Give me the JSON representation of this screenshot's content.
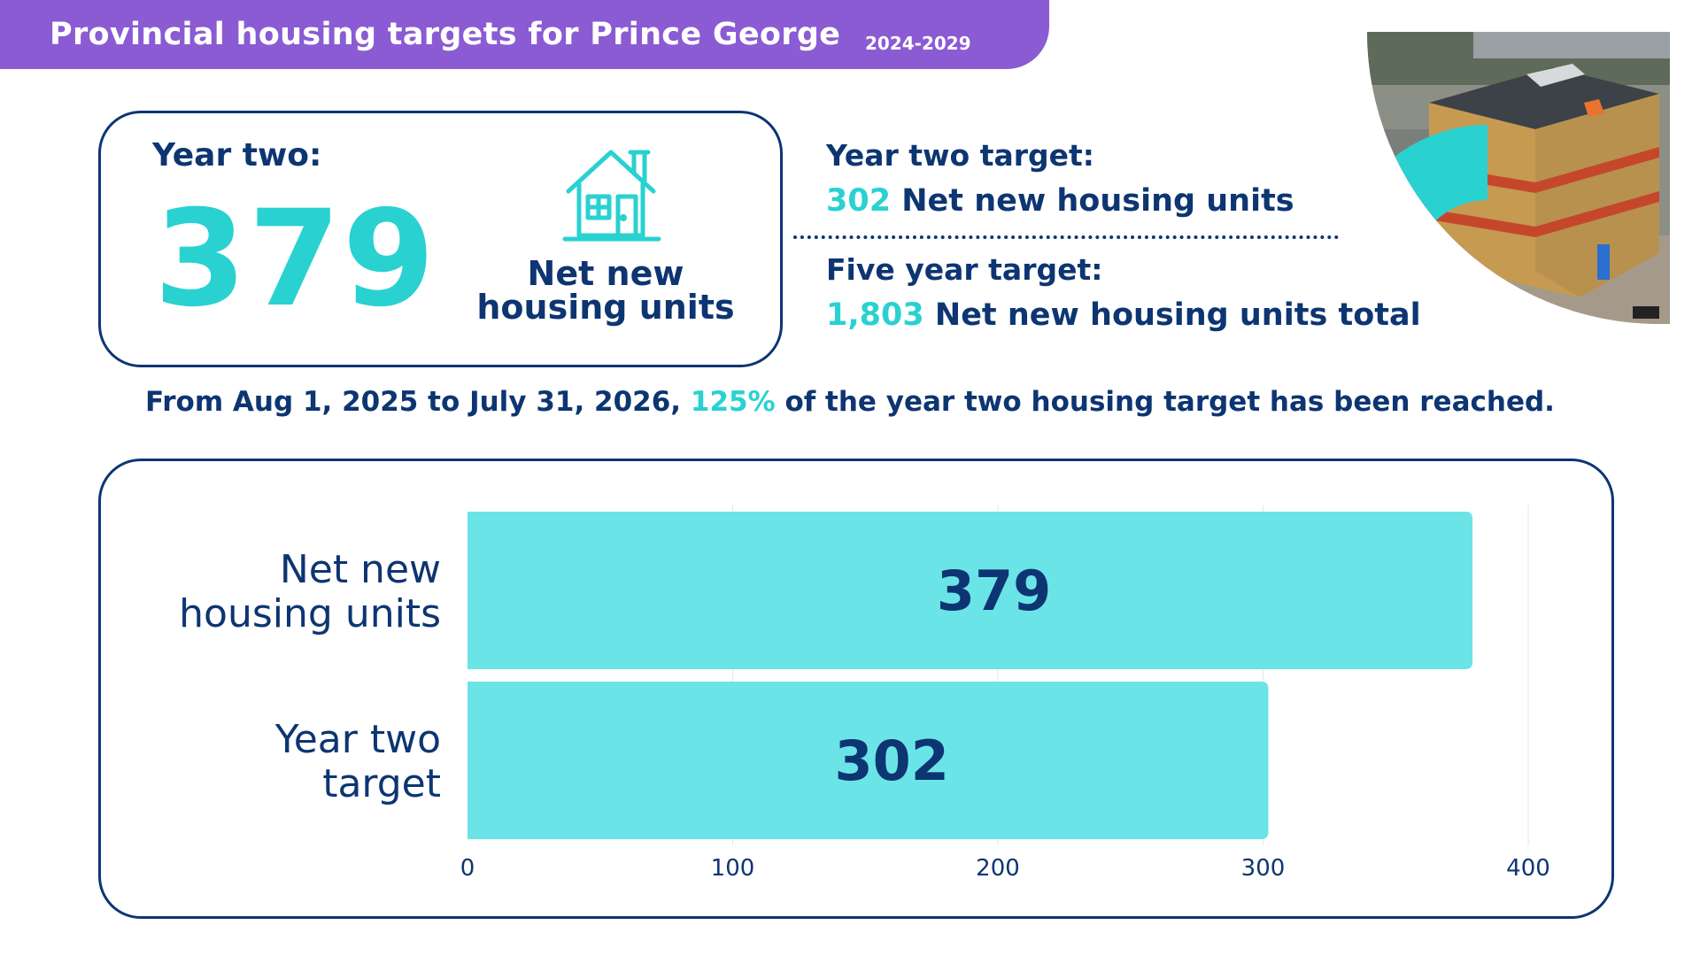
{
  "banner": {
    "title": "Provincial housing targets for Prince George",
    "years": "2024-2029"
  },
  "stat_card": {
    "label": "Year two:",
    "value": "379",
    "caption_line1": "Net new",
    "caption_line2": "housing units",
    "icon": "house-icon"
  },
  "targets": {
    "year_two_label": "Year two target:",
    "year_two_value": "302",
    "year_two_text": "Net new housing units",
    "five_year_label": "Five year target:",
    "five_year_value": "1,803",
    "five_year_text": "Net new housing units total"
  },
  "summary": {
    "prefix": "From Aug 1, 2025 to July 31, 2026,",
    "percent": "125%",
    "suffix": "of the year two housing target has been reached."
  },
  "colors": {
    "navy": "#0d3572",
    "teal": "#2ad1d1",
    "bar": "#6be4e8",
    "banner": "#8a5bd3"
  },
  "chart_data": {
    "type": "bar",
    "orientation": "horizontal",
    "categories": [
      "Net new\nhousing units",
      "Year two\ntarget"
    ],
    "values": [
      379,
      302
    ],
    "data_labels": [
      "379",
      "302"
    ],
    "xlim": [
      0,
      400
    ],
    "xticks": [
      0,
      100,
      200,
      300,
      400
    ],
    "grid": true,
    "legend": "none"
  }
}
